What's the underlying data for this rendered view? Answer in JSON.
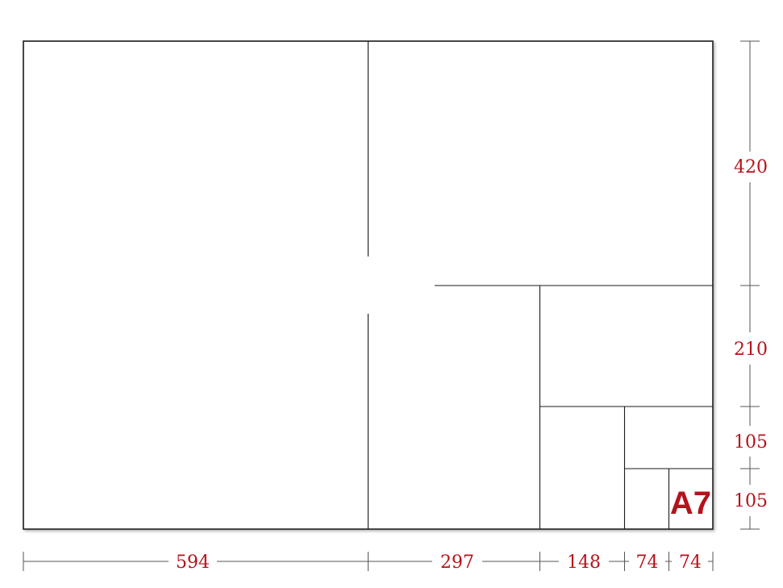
{
  "colors": {
    "accent": "#b5121b",
    "line": "#1a1a1a",
    "dim_line": "#555555"
  },
  "sheet_label": "A7",
  "horizontal_dimensions": [
    {
      "id": "594",
      "label": "594"
    },
    {
      "id": "297",
      "label": "297"
    },
    {
      "id": "148",
      "label": "148"
    },
    {
      "id": "74a",
      "label": "74"
    },
    {
      "id": "74b",
      "label": "74"
    }
  ],
  "vertical_dimensions": [
    {
      "id": "420",
      "label": "420"
    },
    {
      "id": "210",
      "label": "210"
    },
    {
      "id": "105a",
      "label": "105"
    },
    {
      "id": "105b",
      "label": "105"
    }
  ]
}
